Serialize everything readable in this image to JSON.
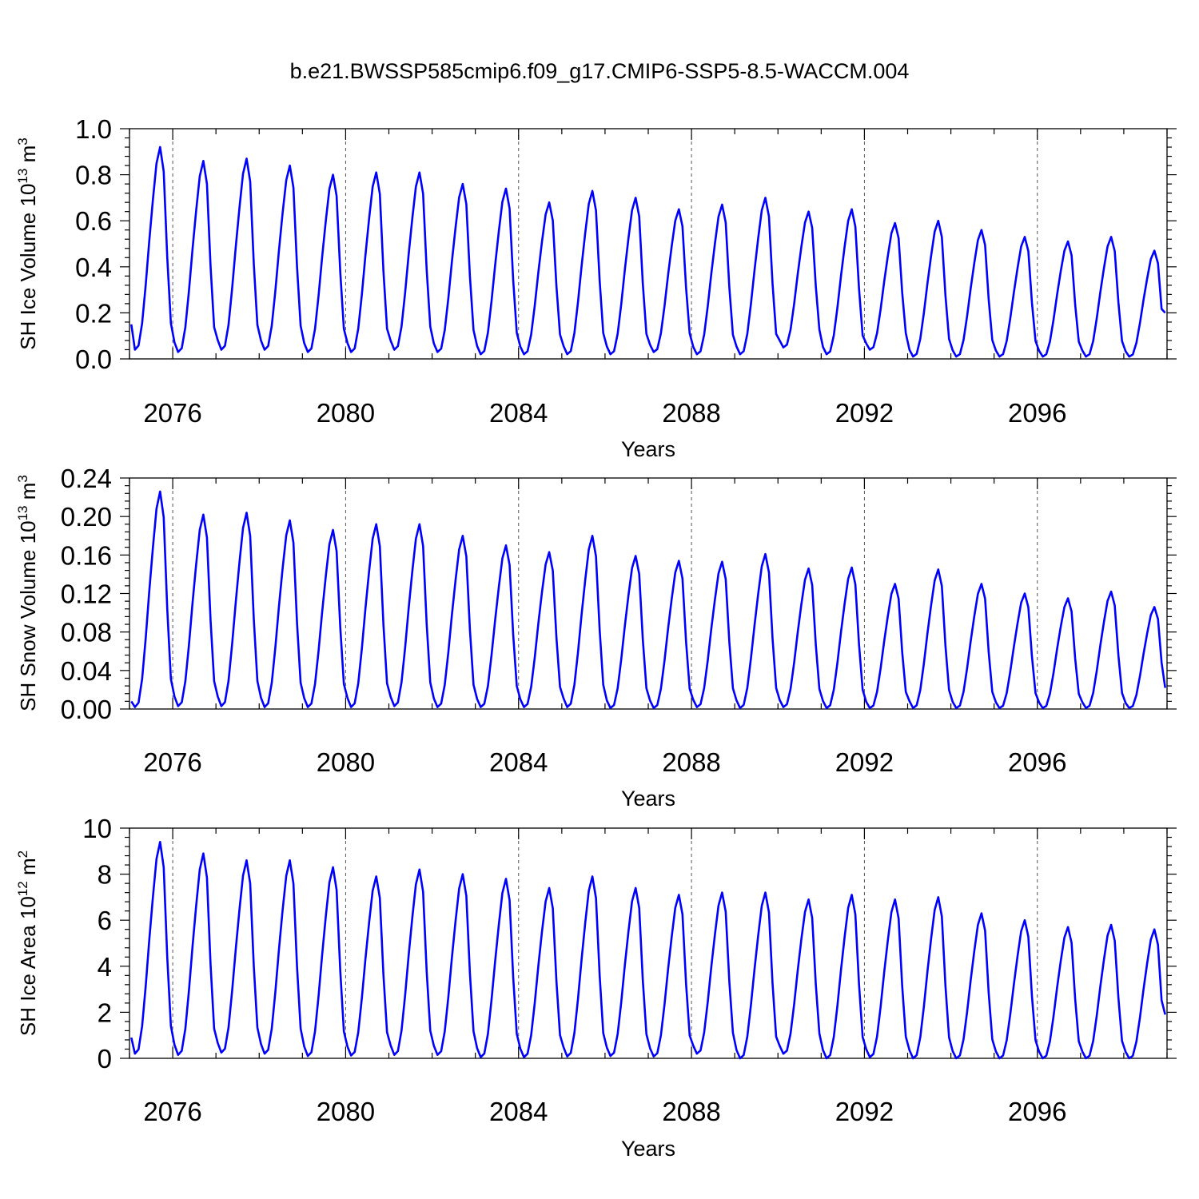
{
  "title": "b.e21.BWSSP585cmip6.f09_g17.CMIP6-SSP5-8.5-WACCM.004",
  "colors": {
    "line": "#0000ff",
    "axis": "#000000",
    "grid": "#555555"
  },
  "chart_data": [
    {
      "type": "line",
      "ylabel": "SH Ice Volume 10",
      "ylabel_exp": "13",
      "ylabel_unit": " m",
      "ylabel_unit_exp": "3",
      "xlabel": "Years",
      "xlim": [
        2075,
        2099
      ],
      "ylim": [
        0.0,
        1.0
      ],
      "yticks": [
        0.0,
        0.2,
        0.4,
        0.6,
        0.8,
        1.0
      ],
      "ytick_labels": [
        "0.0",
        "0.2",
        "0.4",
        "0.6",
        "0.8",
        "1.0"
      ],
      "xticks": [
        2076,
        2080,
        2084,
        2088,
        2092,
        2096
      ],
      "xtick_labels": [
        "2076",
        "2080",
        "2084",
        "2088",
        "2092",
        "2096"
      ],
      "grid_x": true,
      "series": [
        {
          "seasonal_min": [
            0.04,
            0.03,
            0.04,
            0.04,
            0.03,
            0.03,
            0.04,
            0.03,
            0.02,
            0.02,
            0.02,
            0.02,
            0.03,
            0.02,
            0.02,
            0.05,
            0.02,
            0.04,
            0.01,
            0.01,
            0.01,
            0.01,
            0.01,
            0.01
          ],
          "seasonal_max": [
            0.92,
            0.86,
            0.87,
            0.84,
            0.8,
            0.81,
            0.81,
            0.76,
            0.74,
            0.68,
            0.73,
            0.7,
            0.65,
            0.67,
            0.7,
            0.64,
            0.65,
            0.59,
            0.6,
            0.56,
            0.53,
            0.51,
            0.53,
            0.47
          ],
          "start": 0.15,
          "end": 0.2
        }
      ]
    },
    {
      "type": "line",
      "ylabel": "SH Snow Volume 10",
      "ylabel_exp": "13",
      "ylabel_unit": " m",
      "ylabel_unit_exp": "3",
      "xlabel": "Years",
      "xlim": [
        2075,
        2099
      ],
      "ylim": [
        0.0,
        0.24
      ],
      "yticks": [
        0.0,
        0.04,
        0.08,
        0.12,
        0.16,
        0.2,
        0.24
      ],
      "ytick_labels": [
        "0.00",
        "0.04",
        "0.08",
        "0.12",
        "0.16",
        "0.20",
        "0.24"
      ],
      "xticks": [
        2076,
        2080,
        2084,
        2088,
        2092,
        2096
      ],
      "xtick_labels": [
        "2076",
        "2080",
        "2084",
        "2088",
        "2092",
        "2096"
      ],
      "grid_x": true,
      "series": [
        {
          "seasonal_min": [
            0.002,
            0.003,
            0.003,
            0.002,
            0.002,
            0.002,
            0.003,
            0.002,
            0.002,
            0.002,
            0.002,
            0.001,
            0.001,
            0.002,
            0.001,
            0.002,
            0.001,
            0.001,
            0.001,
            0.001,
            0.001,
            0.001,
            0.001,
            0.001
          ],
          "seasonal_max": [
            0.226,
            0.202,
            0.204,
            0.196,
            0.186,
            0.192,
            0.192,
            0.18,
            0.17,
            0.163,
            0.18,
            0.159,
            0.154,
            0.153,
            0.161,
            0.146,
            0.147,
            0.13,
            0.145,
            0.13,
            0.12,
            0.115,
            0.122,
            0.106
          ],
          "start": 0.008,
          "end": 0.022
        }
      ]
    },
    {
      "type": "line",
      "ylabel": "SH Ice Area 10",
      "ylabel_exp": "12",
      "ylabel_unit": " m",
      "ylabel_unit_exp": "2",
      "xlabel": "Years",
      "xlim": [
        2075,
        2099
      ],
      "ylim": [
        0,
        10
      ],
      "yticks": [
        0,
        2,
        4,
        6,
        8,
        10
      ],
      "ytick_labels": [
        "0",
        "2",
        "4",
        "6",
        "8",
        "10"
      ],
      "xticks": [
        2076,
        2080,
        2084,
        2088,
        2092,
        2096
      ],
      "xtick_labels": [
        "2076",
        "2080",
        "2084",
        "2088",
        "2092",
        "2096"
      ],
      "grid_x": true,
      "series": [
        {
          "seasonal_min": [
            0.2,
            0.15,
            0.25,
            0.2,
            0.1,
            0.12,
            0.15,
            0.15,
            0.05,
            0.05,
            0.08,
            0.1,
            0.08,
            0.2,
            0.0,
            0.2,
            0.0,
            0.05,
            0.0,
            0.0,
            0.0,
            0.0,
            0.0,
            0.0
          ],
          "seasonal_max": [
            9.4,
            8.9,
            8.6,
            8.6,
            8.3,
            7.9,
            8.2,
            8.0,
            7.8,
            7.4,
            7.9,
            7.4,
            7.1,
            7.2,
            7.2,
            6.9,
            7.1,
            6.9,
            7.0,
            6.3,
            6.0,
            5.7,
            5.8,
            5.6
          ],
          "start": 0.9,
          "end": 1.9
        }
      ]
    }
  ]
}
